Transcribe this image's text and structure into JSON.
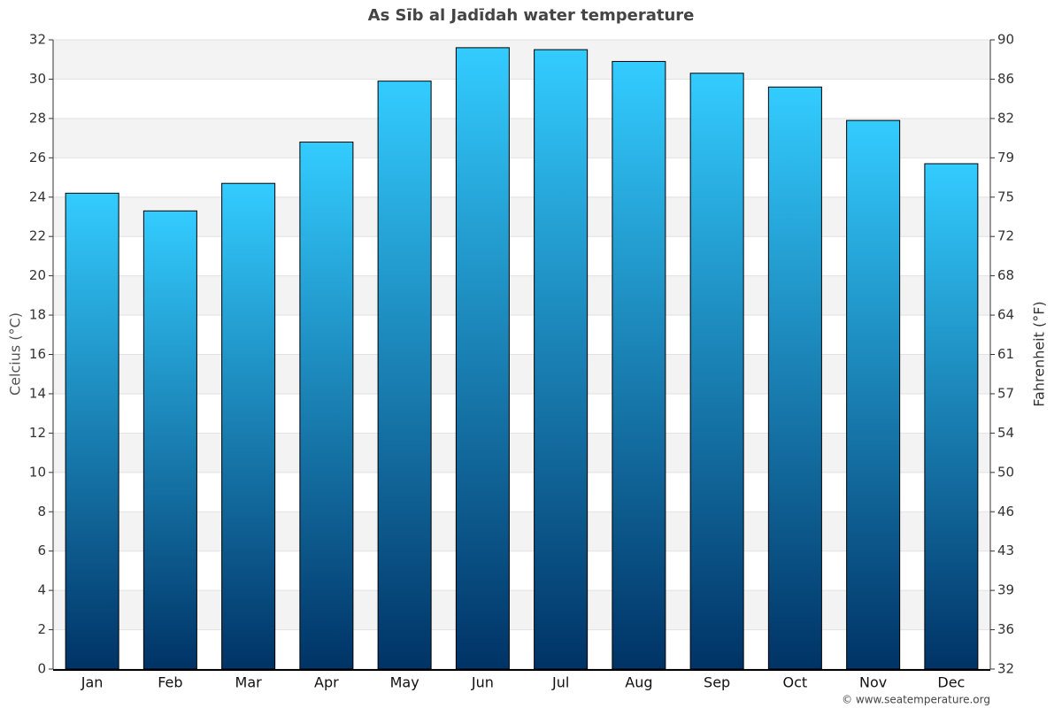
{
  "chart_data": {
    "type": "bar",
    "title": "As Sīb al Jadīdah water temperature",
    "y_label": "Celcius (°C)",
    "y2_label": "Fahrenheit (°F)",
    "source": "© www.seatemperature.org",
    "categories": [
      "Jan",
      "Feb",
      "Mar",
      "Apr",
      "May",
      "Jun",
      "Jul",
      "Aug",
      "Sep",
      "Oct",
      "Nov",
      "Dec"
    ],
    "values": [
      24.2,
      23.3,
      24.7,
      26.8,
      29.9,
      31.6,
      31.5,
      30.9,
      30.3,
      29.6,
      27.9,
      25.7
    ],
    "gradient": [
      "#33ccff",
      "#003366"
    ],
    "ylim": [
      0,
      32
    ],
    "yticks": [
      0,
      2,
      4,
      6,
      8,
      10,
      12,
      14,
      16,
      18,
      20,
      22,
      24,
      26,
      28,
      30,
      32
    ],
    "y2lim": [
      32,
      89.6
    ],
    "y2ticks": [
      32,
      {
        "value": 35.6,
        "label": "36"
      },
      {
        "value": 39.2,
        "label": "39"
      },
      {
        "value": 42.8,
        "label": "43"
      },
      {
        "value": 46.4,
        "label": "46"
      },
      50,
      {
        "value": 53.6,
        "label": "54"
      },
      {
        "value": 57.2,
        "label": "57"
      },
      {
        "value": 60.8,
        "label": "61"
      },
      {
        "value": 64.4,
        "label": "64"
      },
      68,
      {
        "value": 71.6,
        "label": "72"
      },
      {
        "value": 75.2,
        "label": "75"
      },
      {
        "value": 78.8,
        "label": "79"
      },
      {
        "value": 82.4,
        "label": "82"
      },
      86,
      {
        "value": 89.6,
        "label": "90"
      }
    ],
    "grid": true
  }
}
